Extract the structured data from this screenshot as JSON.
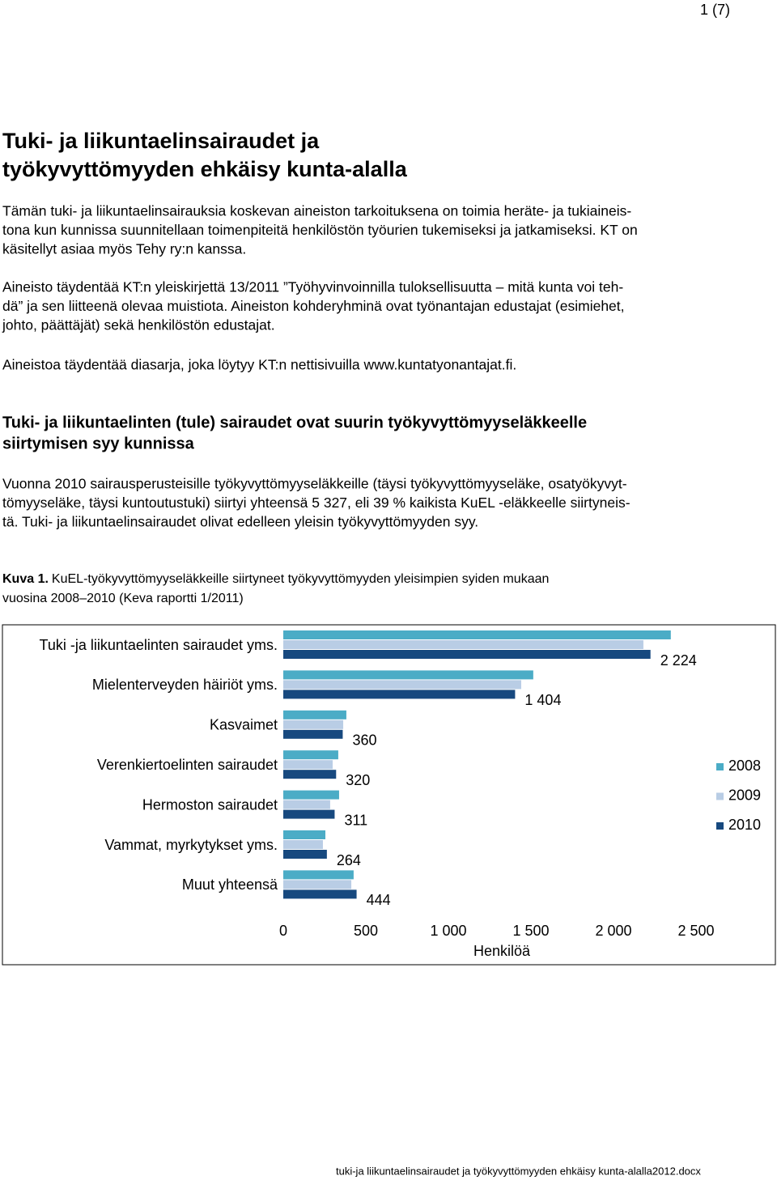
{
  "header": {
    "page": "1 (7)"
  },
  "title": [
    "Tuki- ja liikuntaelinsairaudet ja",
    "työkyvyttömyyden ehkäisy kunta-alalla"
  ],
  "paragraphs": [
    [
      "Tämän tuki- ja liikuntaelinsairauksia koskevan aineiston tarkoituksena on toimia heräte- ja tukiaineis-",
      "tona kun kunnissa suunnitellaan toimenpiteitä henkilöstön työurien tukemiseksi ja jatkamiseksi. KT on",
      "käsitellyt asiaa myös Tehy ry:n kanssa."
    ],
    [
      "Aineisto täydentää KT:n yleiskirjettä 13/2011 ”Työhyvinvoinnilla tuloksellisuutta – mitä kunta voi teh-",
      "dä” ja sen liitteenä olevaa muistiota. Aineiston kohderyhminä ovat työnantajan edustajat (esimiehet,",
      "johto, päättäjät) sekä henkilöstön edustajat."
    ],
    [
      "Aineistoa täydentää diasarja, joka löytyy KT:n nettisivuilla www.kuntatyonantajat.fi."
    ]
  ],
  "heading": [
    "Tuki- ja liikuntaelinten (tule) sairaudet ovat suurin työkyvyttömyyseläkkeelle",
    "siirtymisen syy kunnissa"
  ],
  "paragraph2": [
    "Vuonna 2010 sairausperusteisille työkyvyttömyyseläkkeille (täysi työkyvyttömyyseläke, osatyökyvyt-",
    "tömyyseläke, täysi kuntoutustuki) siirtyi yhteensä 5 327, eli 39 % kaikista KuEL -eläkkeelle siirtyneis-",
    "tä. Tuki- ja liikuntaelinsairaudet olivat edelleen yleisin työkyvyttömyyden syy."
  ],
  "caption": {
    "label": "Kuva 1.",
    "text": [
      "KuEL-työkyvyttömyyseläkkeille siirtyneet työkyvyttömyyden yleisimpien syiden mukaan",
      "vuosina 2008–2010 (Keva raportti 1/2011)"
    ]
  },
  "chart_data": {
    "type": "hbar",
    "categories": [
      "Tuki -ja liikuntaelinten sairaudet yms.",
      "Mielenterveyden häiriöt yms.",
      "Kasvaimet",
      "Verenkiertoelinten sairaudet",
      "Hermoston sairaudet",
      "Vammat, myrkytykset yms.",
      "Muut yhteensä"
    ],
    "series": [
      {
        "name": "2008",
        "color": "#4bacc6",
        "values": [
          2347,
          1514,
          382,
          333,
          338,
          255,
          426
        ]
      },
      {
        "name": "2009",
        "color": "#b9cde5",
        "values": [
          2181,
          1441,
          363,
          299,
          284,
          240,
          412
        ]
      },
      {
        "name": "2010",
        "color": "#17497f",
        "values": [
          2224,
          1404,
          360,
          320,
          311,
          264,
          444
        ],
        "value_labels": [
          "2 224",
          "1 404",
          "360",
          "320",
          "311",
          "264",
          "444"
        ]
      }
    ],
    "xlabel": "Henkilöä",
    "xlim": [
      0,
      2500
    ],
    "xticks": [
      0,
      500,
      {
        "value": 1000,
        "label": "1 000"
      },
      {
        "value": 1500,
        "label": "1 500"
      },
      {
        "value": 2000,
        "label": "2 000"
      },
      {
        "value": 2500,
        "label": "2 500"
      }
    ],
    "legend": "right"
  },
  "footer": "tuki-ja liikuntaelinsairaudet ja työkyvyttömyyden ehkäisy kunta-alalla2012.docx"
}
